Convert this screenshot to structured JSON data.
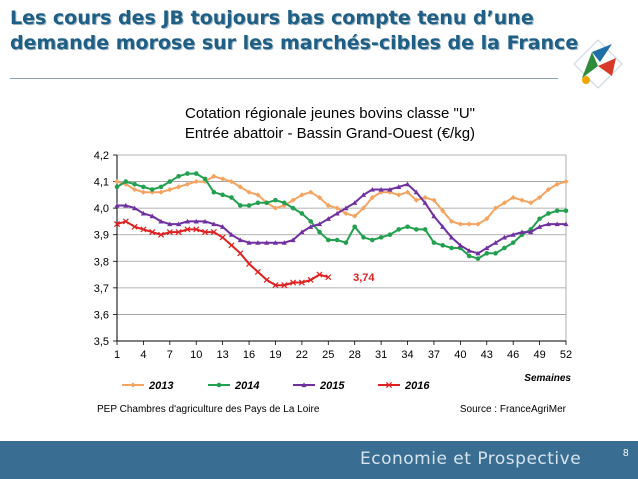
{
  "slide": {
    "title": "Les cours des JB toujours bas compte tenu d’une demande morose sur les marchés-cibles de la France",
    "footer": "Economie et Prospective",
    "page_number": "8"
  },
  "colors": {
    "series_2013": "#f4a460",
    "series_2014": "#22a050",
    "series_2015": "#7030a0",
    "series_2016": "#e02020",
    "footer_band": "#3a6d92",
    "title_text": "#1f5f86"
  },
  "chart_data": {
    "type": "line",
    "title_line1": "Cotation régionale jeunes bovins classe \"U\"",
    "title_line2": "Entrée abattoir - Bassin Grand-Ouest (€/kg)",
    "xlabel": "Semaines",
    "ylabel": "",
    "xlim": [
      1,
      52
    ],
    "ylim": [
      3.5,
      4.2
    ],
    "x_ticks": [
      1,
      4,
      7,
      10,
      13,
      16,
      19,
      22,
      25,
      28,
      31,
      34,
      37,
      40,
      43,
      46,
      49,
      52
    ],
    "y_ticks": [
      "3,5",
      "3,6",
      "3,7",
      "3,8",
      "3,9",
      "4,0",
      "4,1",
      "4,2"
    ],
    "grid": "horizontal",
    "legend_position": "bottom",
    "annotation": {
      "text": "3,74",
      "week": 26,
      "value": 3.74
    },
    "source_left": "PEP Chambres d'agriculture des Pays de La Loire",
    "source_right": "Source : FranceAgriMer",
    "series": [
      {
        "name": "2013",
        "color": "#f4a460",
        "marker": "diamond",
        "values": [
          4.1,
          4.09,
          4.07,
          4.06,
          4.06,
          4.06,
          4.07,
          4.08,
          4.09,
          4.1,
          4.1,
          4.12,
          4.11,
          4.1,
          4.08,
          4.06,
          4.05,
          4.02,
          4.0,
          4.01,
          4.03,
          4.05,
          4.06,
          4.04,
          4.01,
          4.0,
          3.98,
          3.97,
          4.0,
          4.04,
          4.06,
          4.06,
          4.05,
          4.06,
          4.03,
          4.04,
          4.03,
          3.99,
          3.95,
          3.94,
          3.94,
          3.94,
          3.96,
          4.0,
          4.02,
          4.04,
          4.03,
          4.02,
          4.04,
          4.07,
          4.09,
          4.1
        ]
      },
      {
        "name": "2014",
        "color": "#22a050",
        "marker": "circle",
        "values": [
          4.08,
          4.1,
          4.09,
          4.08,
          4.07,
          4.08,
          4.1,
          4.12,
          4.13,
          4.13,
          4.11,
          4.06,
          4.05,
          4.04,
          4.01,
          4.01,
          4.02,
          4.02,
          4.03,
          4.02,
          4.0,
          3.98,
          3.95,
          3.91,
          3.88,
          3.88,
          3.87,
          3.93,
          3.89,
          3.88,
          3.89,
          3.9,
          3.92,
          3.93,
          3.92,
          3.92,
          3.87,
          3.86,
          3.85,
          3.85,
          3.82,
          3.81,
          3.83,
          3.83,
          3.85,
          3.87,
          3.9,
          3.92,
          3.96,
          3.98,
          3.99,
          3.99
        ]
      },
      {
        "name": "2015",
        "color": "#7030a0",
        "marker": "triangle",
        "values": [
          4.01,
          4.01,
          4.0,
          3.98,
          3.97,
          3.95,
          3.94,
          3.94,
          3.95,
          3.95,
          3.95,
          3.94,
          3.93,
          3.9,
          3.88,
          3.87,
          3.87,
          3.87,
          3.87,
          3.87,
          3.88,
          3.91,
          3.93,
          3.94,
          3.96,
          3.98,
          4.0,
          4.02,
          4.05,
          4.07,
          4.07,
          4.07,
          4.08,
          4.09,
          4.06,
          4.02,
          3.97,
          3.93,
          3.89,
          3.86,
          3.84,
          3.83,
          3.85,
          3.87,
          3.89,
          3.9,
          3.91,
          3.91,
          3.93,
          3.94,
          3.94,
          3.94
        ]
      },
      {
        "name": "2016",
        "color": "#e02020",
        "marker": "x",
        "values": [
          3.94,
          3.95,
          3.93,
          3.92,
          3.91,
          3.9,
          3.91,
          3.91,
          3.92,
          3.92,
          3.91,
          3.91,
          3.89,
          3.86,
          3.83,
          3.79,
          3.76,
          3.73,
          3.71,
          3.71,
          3.72,
          3.72,
          3.73,
          3.75,
          3.74
        ]
      }
    ]
  }
}
